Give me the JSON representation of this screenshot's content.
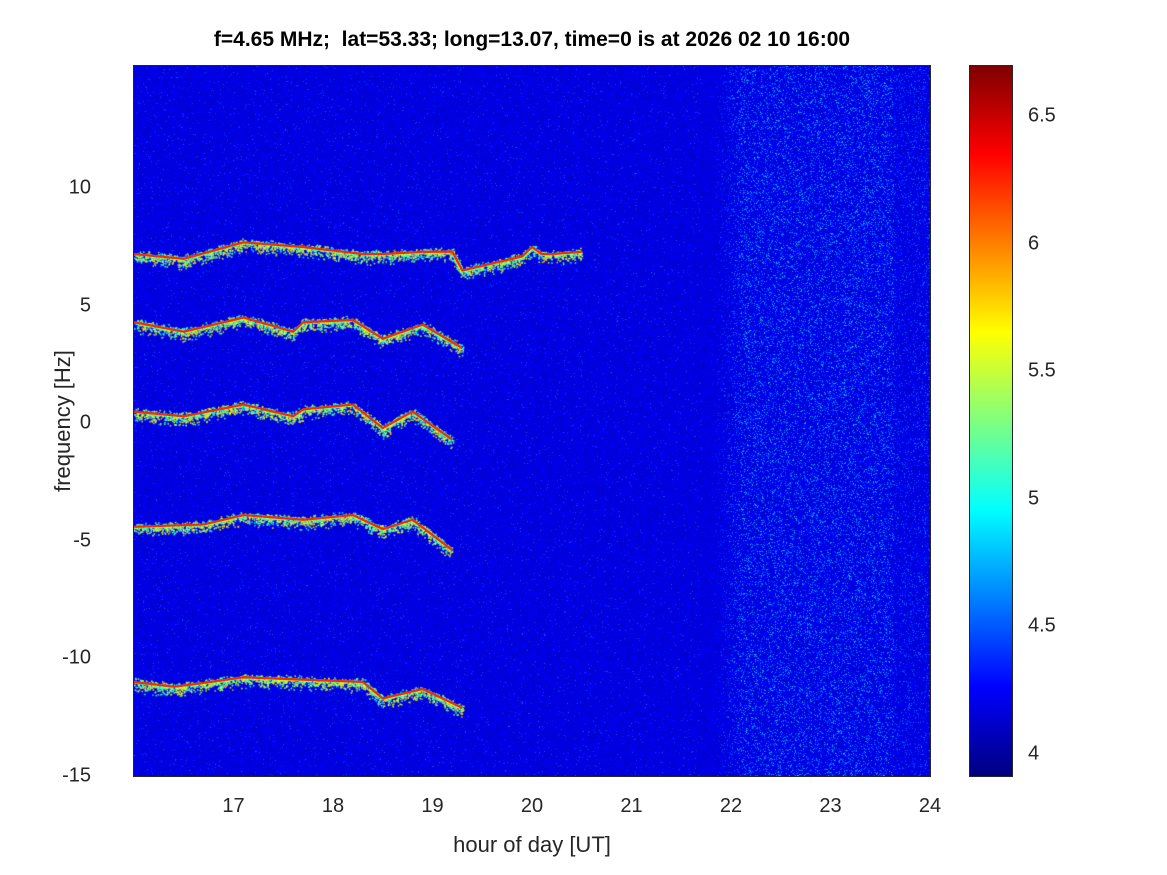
{
  "chart_data": {
    "type": "heatmap",
    "title": "f=4.65 MHz;  lat=53.33; long=13.07, time=0 is at 2026 02 10 16:00",
    "xlabel": "hour of day [UT]",
    "ylabel": "frequency [Hz]",
    "xlim": [
      16,
      24
    ],
    "ylim": [
      -15,
      15.2
    ],
    "xticks": [
      "17",
      "18",
      "19",
      "20",
      "21",
      "22",
      "23",
      "24"
    ],
    "xtick_values": [
      17,
      18,
      19,
      20,
      21,
      22,
      23,
      24
    ],
    "yticks": [
      "10",
      "5",
      "0",
      "-5",
      "-10",
      "-15"
    ],
    "ytick_values": [
      10,
      5,
      0,
      -5,
      -10,
      -15
    ],
    "colormap": "jet",
    "clim": [
      3.91,
      6.7
    ],
    "colorbar_ticks": [
      "6.5",
      "6",
      "5.5",
      "5",
      "4.5",
      "4"
    ],
    "colorbar_tick_values": [
      6.5,
      6,
      5.5,
      5,
      4.5,
      4
    ],
    "background_level": 4.0,
    "enhanced_noise_hours": [
      21.7,
      24
    ],
    "traces": [
      {
        "points": [
          [
            16.0,
            7.2
          ],
          [
            16.5,
            7.0
          ],
          [
            17.1,
            7.7
          ],
          [
            17.7,
            7.5
          ],
          [
            18.3,
            7.2
          ],
          [
            18.5,
            7.2
          ],
          [
            18.9,
            7.3
          ],
          [
            19.2,
            7.3
          ],
          [
            19.3,
            6.5
          ],
          [
            19.6,
            6.8
          ],
          [
            19.9,
            7.1
          ],
          [
            20.0,
            7.5
          ],
          [
            20.1,
            7.2
          ],
          [
            20.2,
            7.2
          ],
          [
            20.5,
            7.3
          ]
        ]
      },
      {
        "points": [
          [
            16.0,
            4.3
          ],
          [
            16.5,
            3.9
          ],
          [
            17.1,
            4.5
          ],
          [
            17.6,
            3.9
          ],
          [
            17.7,
            4.3
          ],
          [
            18.2,
            4.4
          ],
          [
            18.5,
            3.6
          ],
          [
            18.9,
            4.2
          ],
          [
            19.3,
            3.2
          ]
        ]
      },
      {
        "points": [
          [
            16.0,
            0.5
          ],
          [
            16.5,
            0.3
          ],
          [
            17.1,
            0.8
          ],
          [
            17.6,
            0.3
          ],
          [
            17.7,
            0.6
          ],
          [
            18.2,
            0.8
          ],
          [
            18.5,
            -0.2
          ],
          [
            18.8,
            0.5
          ],
          [
            19.2,
            -0.7
          ]
        ]
      },
      {
        "points": [
          [
            16.0,
            -4.4
          ],
          [
            16.7,
            -4.3
          ],
          [
            17.1,
            -3.9
          ],
          [
            17.7,
            -4.1
          ],
          [
            18.2,
            -3.9
          ],
          [
            18.5,
            -4.5
          ],
          [
            18.8,
            -4.1
          ],
          [
            19.2,
            -5.4
          ]
        ]
      },
      {
        "points": [
          [
            16.0,
            -11.0
          ],
          [
            16.4,
            -11.2
          ],
          [
            16.6,
            -11.1
          ],
          [
            17.1,
            -10.8
          ],
          [
            17.7,
            -10.9
          ],
          [
            18.3,
            -11.0
          ],
          [
            18.5,
            -11.7
          ],
          [
            18.9,
            -11.3
          ],
          [
            19.3,
            -12.1
          ]
        ]
      }
    ]
  }
}
